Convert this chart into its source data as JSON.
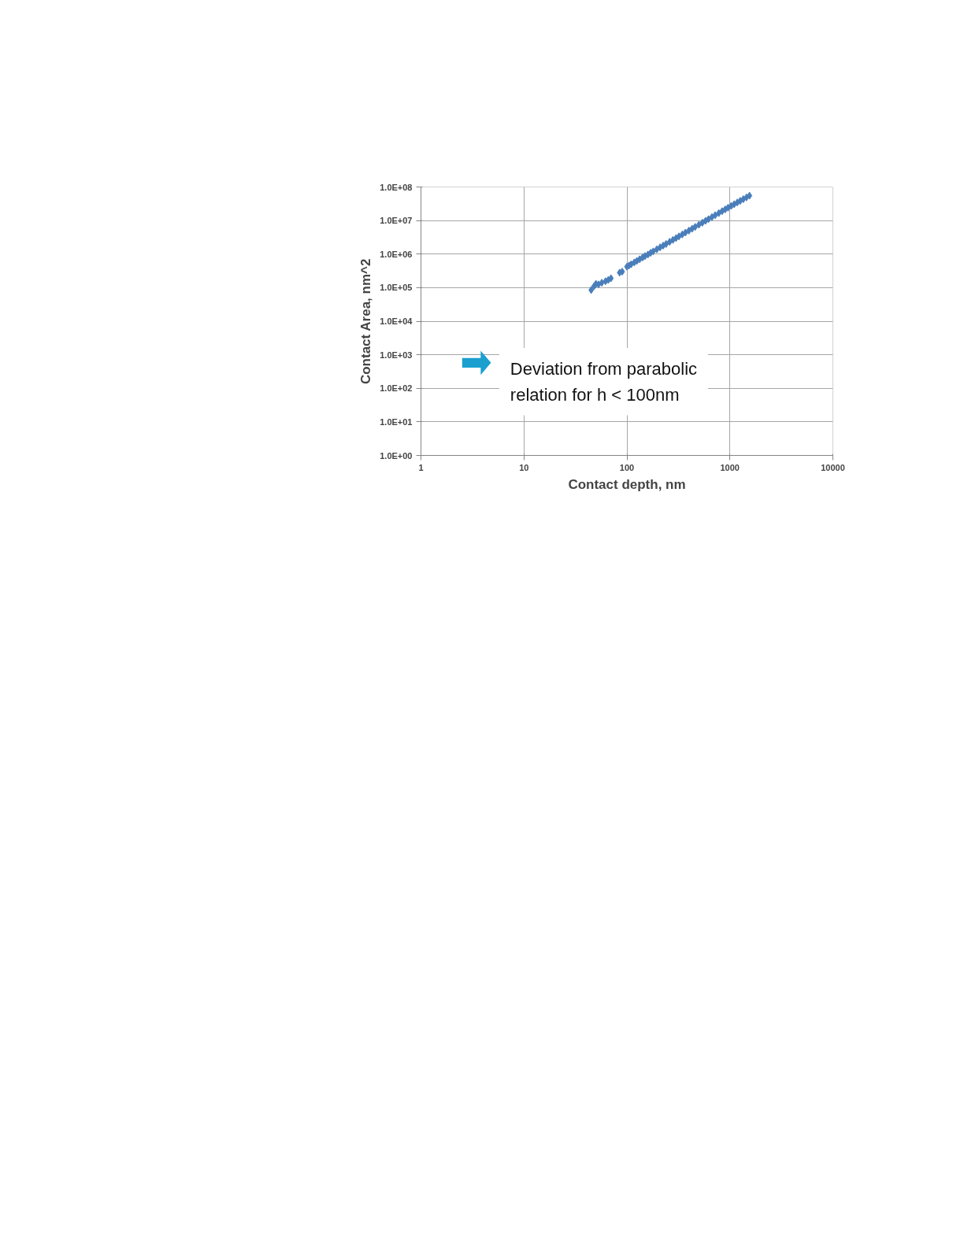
{
  "chart_data": {
    "type": "scatter",
    "xlabel": "Contact depth, nm",
    "ylabel": "Contact Area, nm^2",
    "annotations": [
      "Deviation from parabolic relation for h < 100nm"
    ],
    "log": "xy",
    "grid": true,
    "marker": "diamond",
    "xlim": [
      1,
      10000
    ],
    "xticks": [
      1,
      10,
      100,
      1000,
      10000
    ],
    "ylim": [
      1,
      100000000
    ],
    "yticks": [
      {
        "value": 1,
        "label": "1.0E+00"
      },
      {
        "value": 10,
        "label": "1.0E+01"
      },
      {
        "value": 100,
        "label": "1.0E+02"
      },
      {
        "value": 1000,
        "label": "1.0E+03"
      },
      {
        "value": 10000,
        "label": "1.0E+04"
      },
      {
        "value": 100000,
        "label": "1.0E+05"
      },
      {
        "value": 1000000,
        "label": "1.0E+06"
      },
      {
        "value": 10000000,
        "label": "1.0E+07"
      },
      {
        "value": 100000000,
        "label": "1.0E+08"
      }
    ],
    "series": [
      {
        "color": "#4a7ebb",
        "x": [
          45,
          48,
          50,
          53,
          57,
          62,
          66,
          70,
          85,
          90,
          100,
          105,
          110,
          118,
          125,
          133,
          142,
          150,
          160,
          170,
          180,
          195,
          210,
          225,
          240,
          260,
          280,
          300,
          320,
          345,
          370,
          400,
          430,
          460,
          500,
          540,
          580,
          620,
          670,
          720,
          780,
          840,
          900,
          960,
          1030,
          1100,
          1180,
          1260,
          1350,
          1450,
          1550
        ],
        "values": [
          85000,
          110000,
          130000,
          125000,
          140000,
          155000,
          170000,
          190000,
          280000,
          300000,
          420000,
          458000,
          498000,
          565000,
          626000,
          700000,
          790000,
          870000,
          970000,
          1090000,
          1200000,
          1390000,
          1590000,
          1790000,
          2000000,
          2320000,
          2650000,
          3000000,
          3370000,
          3850000,
          4370000,
          5000000,
          5700000,
          6450000,
          7500000,
          8600000,
          9800000,
          11000000,
          12700000,
          14400000,
          16600000,
          19000000,
          21500000,
          24100000,
          27300000,
          30600000,
          34500000,
          38500000,
          43300000,
          48900000,
          55000000
        ]
      }
    ]
  }
}
